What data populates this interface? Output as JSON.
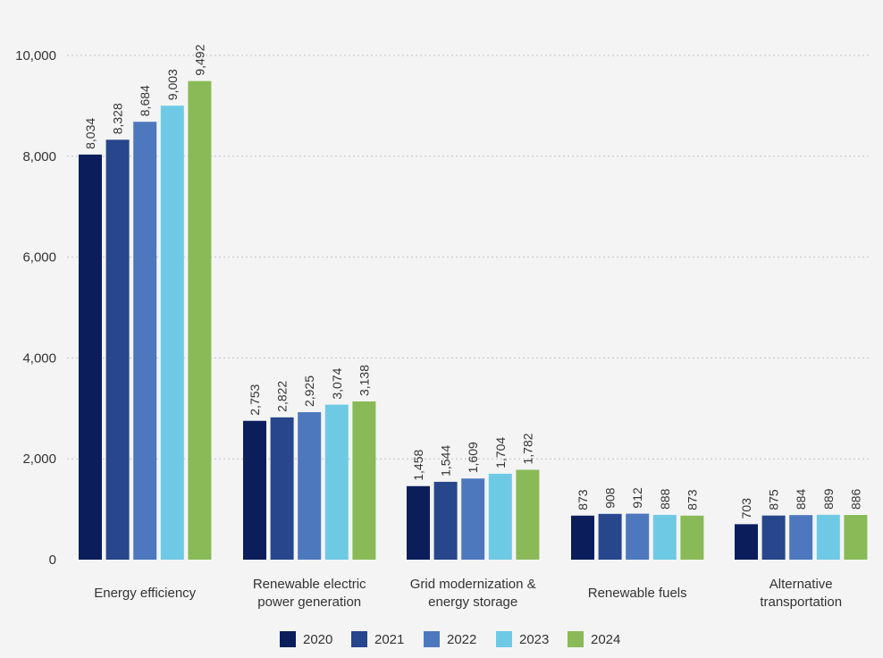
{
  "chart_data": {
    "type": "bar",
    "categories": [
      [
        "Energy efficiency"
      ],
      [
        "Renewable electric",
        "power generation"
      ],
      [
        "Grid modernization &",
        "energy storage"
      ],
      [
        "Renewable fuels"
      ],
      [
        "Alternative",
        "transportation"
      ]
    ],
    "series": [
      {
        "name": "2020",
        "color": "#0b1e5b",
        "values": [
          8034,
          2753,
          1458,
          873,
          703
        ]
      },
      {
        "name": "2021",
        "color": "#27468b",
        "values": [
          8328,
          2822,
          1544,
          908,
          875
        ]
      },
      {
        "name": "2022",
        "color": "#4e78be",
        "values": [
          8684,
          2925,
          1609,
          912,
          884
        ]
      },
      {
        "name": "2023",
        "color": "#6ecae4",
        "values": [
          9003,
          3074,
          1704,
          888,
          889
        ]
      },
      {
        "name": "2024",
        "color": "#8aba57",
        "values": [
          9492,
          3138,
          1782,
          873,
          886
        ]
      }
    ],
    "ylim": [
      0,
      10000
    ],
    "yticks": [
      0,
      2000,
      4000,
      6000,
      8000,
      10000
    ],
    "ytick_labels": [
      "0",
      "2,000",
      "4,000",
      "6,000",
      "8,000",
      "10,000"
    ],
    "grid": true,
    "legend_position": "bottom-center",
    "data_labels": true
  }
}
